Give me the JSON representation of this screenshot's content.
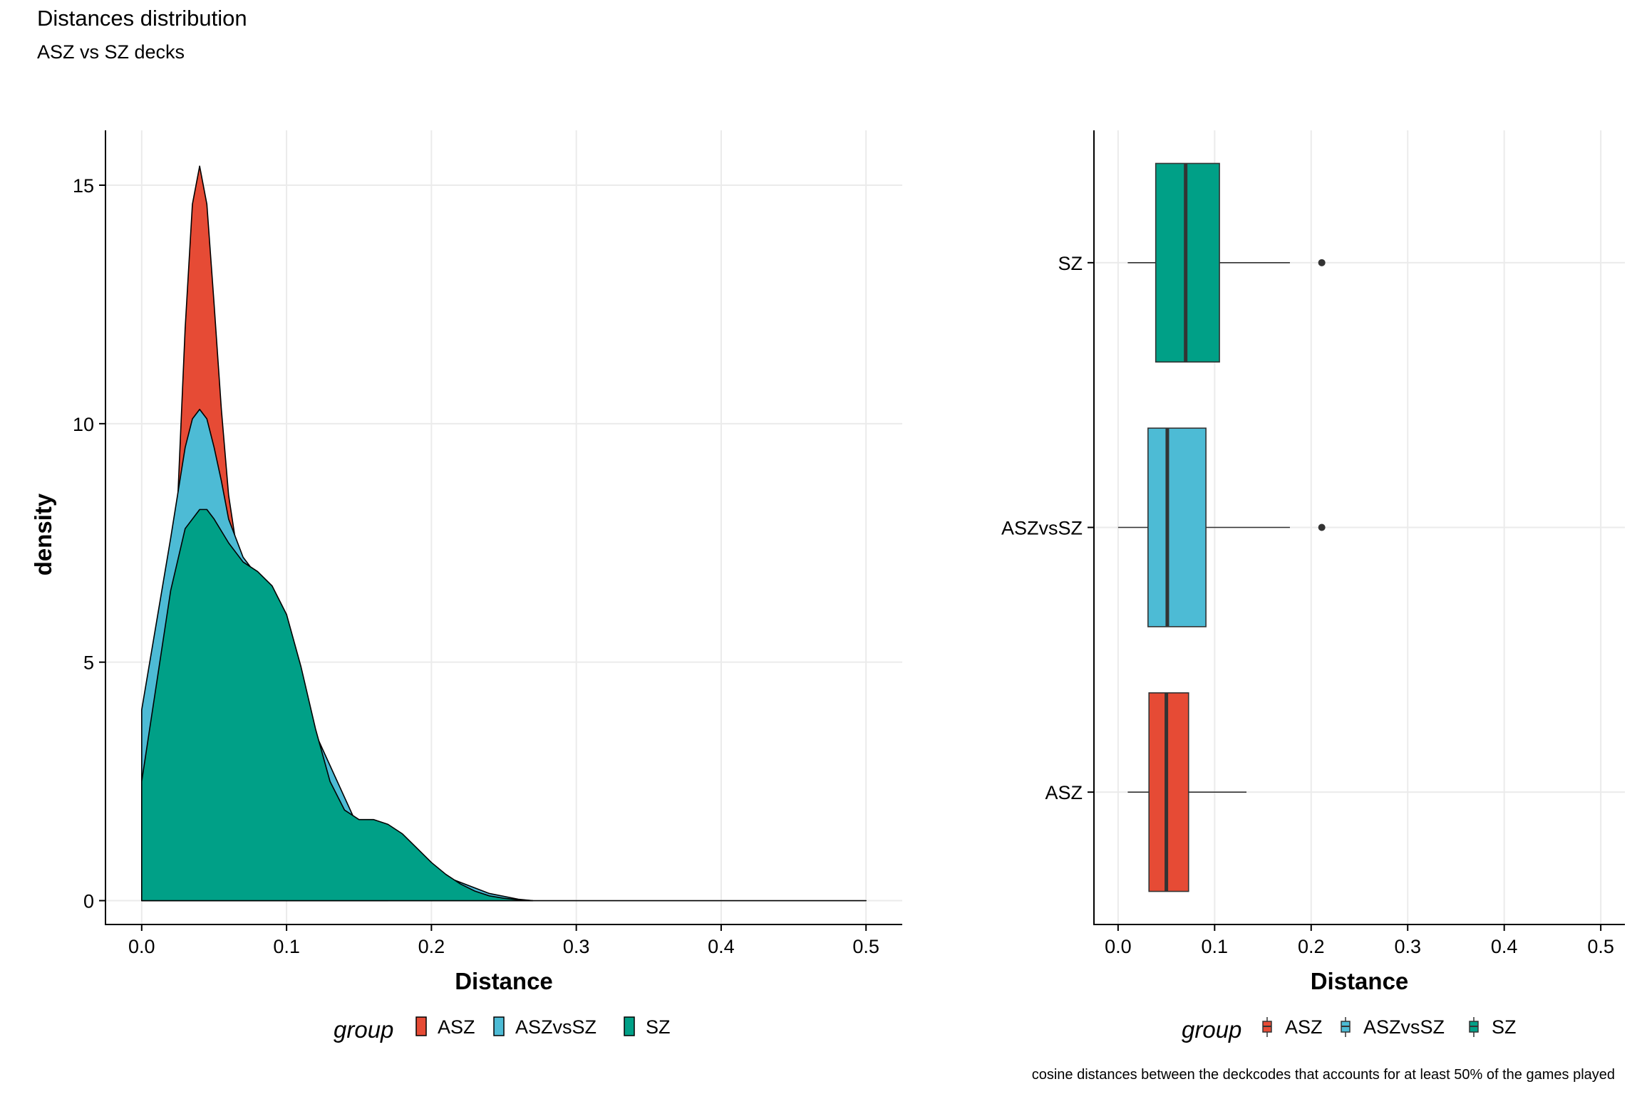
{
  "title": "Distances distribution",
  "subtitle": "ASZ vs SZ decks",
  "caption": "cosine distances between the deckcodes that accounts for at least 50% of the games played",
  "colors": {
    "ASZ": "#E64B35",
    "ASZvsSZ": "#4DBBD5",
    "SZ": "#00A087",
    "grid": "#EBEBEB",
    "outline": "#000000"
  },
  "chart_data": [
    {
      "type": "area",
      "subtype": "density",
      "xlabel": "Distance",
      "ylabel": "density",
      "xlim": [
        0,
        0.5
      ],
      "ylim": [
        0,
        15
      ],
      "x_ticks": [
        "0.0",
        "0.1",
        "0.2",
        "0.3",
        "0.4",
        "0.5"
      ],
      "y_ticks": [
        "0",
        "5",
        "10",
        "15"
      ],
      "grid": true,
      "legend": {
        "title": "group",
        "position": "bottom",
        "entries": [
          "ASZ",
          "ASZvsSZ",
          "SZ"
        ]
      },
      "series": [
        {
          "name": "ASZ",
          "x": [
            0.0,
            0.01,
            0.02,
            0.025,
            0.03,
            0.035,
            0.04,
            0.045,
            0.05,
            0.055,
            0.06,
            0.065,
            0.07,
            0.075,
            0.08,
            0.09,
            0.1,
            0.12,
            0.15,
            0.17
          ],
          "y": [
            1.5,
            3.0,
            5.5,
            8.5,
            12.0,
            14.6,
            15.4,
            14.6,
            12.5,
            10.3,
            8.5,
            7.5,
            7.0,
            6.5,
            5.5,
            3.6,
            2.0,
            0.7,
            0.1,
            0.0
          ]
        },
        {
          "name": "ASZvsSZ",
          "x": [
            0.0,
            0.01,
            0.02,
            0.03,
            0.035,
            0.04,
            0.045,
            0.05,
            0.055,
            0.06,
            0.07,
            0.08,
            0.09,
            0.1,
            0.12,
            0.15,
            0.18,
            0.21,
            0.24,
            0.26,
            0.27
          ],
          "y": [
            4.0,
            5.8,
            7.6,
            9.5,
            10.1,
            10.3,
            10.1,
            9.5,
            8.8,
            8.0,
            7.2,
            6.8,
            6.3,
            5.5,
            3.5,
            1.5,
            1.0,
            0.5,
            0.15,
            0.03,
            0.0
          ]
        },
        {
          "name": "SZ",
          "x": [
            0.0,
            0.01,
            0.02,
            0.03,
            0.04,
            0.045,
            0.05,
            0.06,
            0.07,
            0.08,
            0.09,
            0.1,
            0.11,
            0.12,
            0.13,
            0.14,
            0.15,
            0.16,
            0.17,
            0.18,
            0.19,
            0.2,
            0.21,
            0.22,
            0.23,
            0.24,
            0.25,
            0.26,
            0.27,
            0.3,
            0.4,
            0.5
          ],
          "y": [
            2.5,
            4.5,
            6.5,
            7.8,
            8.2,
            8.2,
            8.0,
            7.5,
            7.1,
            6.9,
            6.6,
            6.0,
            4.9,
            3.6,
            2.5,
            1.9,
            1.7,
            1.7,
            1.6,
            1.4,
            1.1,
            0.8,
            0.55,
            0.35,
            0.2,
            0.1,
            0.05,
            0.02,
            0.0,
            0.0,
            0.0,
            0.0
          ]
        }
      ]
    },
    {
      "type": "boxplot",
      "orientation": "horizontal",
      "xlabel": "Distance",
      "ylabel": "",
      "xlim": [
        0,
        0.5
      ],
      "x_ticks": [
        "0.0",
        "0.1",
        "0.2",
        "0.3",
        "0.4",
        "0.5"
      ],
      "categories": [
        "ASZ",
        "ASZvsSZ",
        "SZ"
      ],
      "grid": true,
      "legend": {
        "title": "group",
        "position": "bottom",
        "entries": [
          "ASZ",
          "ASZvsSZ",
          "SZ"
        ]
      },
      "boxes": [
        {
          "name": "ASZ",
          "whisker_low": 0.01,
          "q1": 0.032,
          "median": 0.05,
          "q3": 0.073,
          "whisker_high": 0.133,
          "outliers": []
        },
        {
          "name": "ASZvsSZ",
          "whisker_low": 0.0,
          "q1": 0.031,
          "median": 0.051,
          "q3": 0.091,
          "whisker_high": 0.178,
          "outliers": [
            0.211
          ]
        },
        {
          "name": "SZ",
          "whisker_low": 0.01,
          "q1": 0.039,
          "median": 0.07,
          "q3": 0.105,
          "whisker_high": 0.178,
          "outliers": [
            0.211
          ]
        }
      ]
    }
  ]
}
